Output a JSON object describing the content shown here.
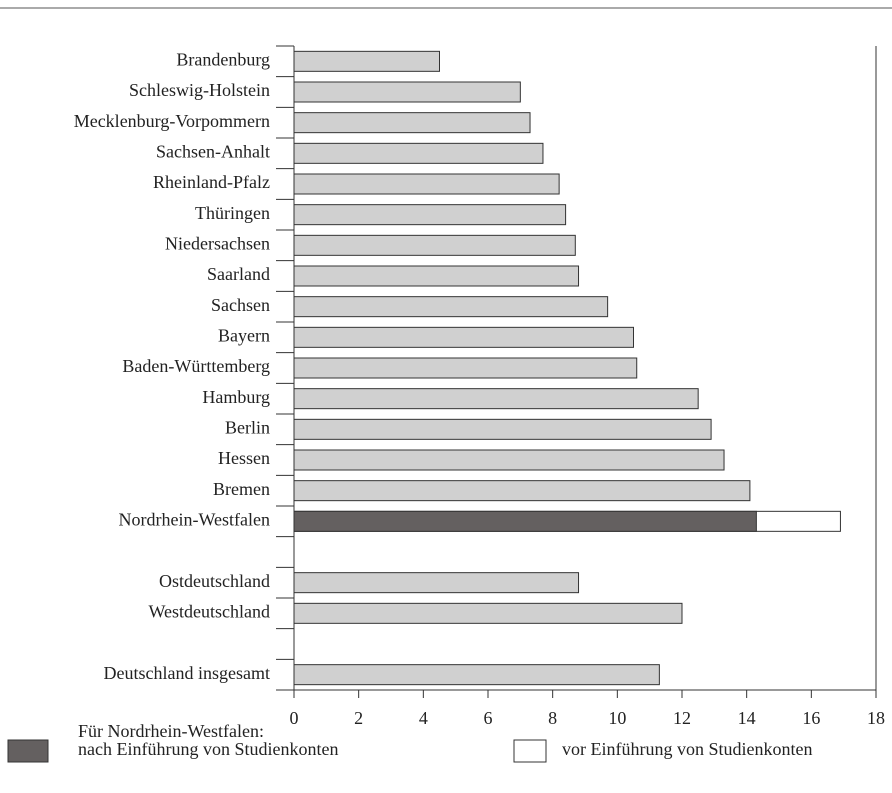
{
  "chart_data": {
    "type": "bar",
    "orientation": "horizontal",
    "categories": [
      "Brandenburg",
      "Schleswig-Holstein",
      "Mecklenburg-Vorpommern",
      "Sachsen-Anhalt",
      "Rheinland-Pfalz",
      "Thüringen",
      "Niedersachsen",
      "Saarland",
      "Sachsen",
      "Bayern",
      "Baden-Württemberg",
      "Hamburg",
      "Berlin",
      "Hessen",
      "Bremen",
      "Nordrhein-Westfalen",
      null,
      "Ostdeutschland",
      "Westdeutschland",
      null,
      "Deutschland insgesamt"
    ],
    "values": [
      4.5,
      7.0,
      7.3,
      7.7,
      8.2,
      8.4,
      8.7,
      8.8,
      9.7,
      10.5,
      10.6,
      12.5,
      12.9,
      13.3,
      14.1,
      null,
      null,
      8.8,
      12.0,
      null,
      11.3
    ],
    "color": "#d0d0d0",
    "legend_title": "Für Nordrhein-Westfalen:",
    "series": [
      {
        "name": "vor Einführung von Studienkonten",
        "color": "#ffffff",
        "values": [
          null,
          null,
          null,
          null,
          null,
          null,
          null,
          null,
          null,
          null,
          null,
          null,
          null,
          null,
          null,
          16.9,
          null,
          null,
          null,
          null,
          null
        ]
      },
      {
        "name": "nach Einführung von Studienkonten",
        "color": "#646060",
        "values": [
          null,
          null,
          null,
          null,
          null,
          null,
          null,
          null,
          null,
          null,
          null,
          null,
          null,
          null,
          null,
          14.3,
          null,
          null,
          null,
          null,
          null
        ]
      }
    ],
    "xlim": [
      0,
      18
    ],
    "xticks": [
      0,
      2,
      4,
      6,
      8,
      10,
      12,
      14,
      16,
      18
    ]
  }
}
